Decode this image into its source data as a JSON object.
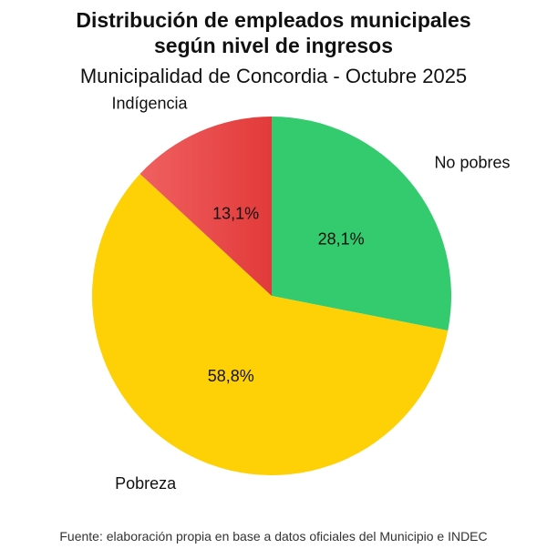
{
  "chart_data": {
    "type": "pie",
    "title_lines": [
      "Distribución de empleados municipales",
      "según nivel de ingresos"
    ],
    "subtitle": "Municipalidad de Concordia - Octubre 2025",
    "slices": [
      {
        "label": "No pobres",
        "value": 28.1,
        "display": "28,1%",
        "color": "#34cb6e"
      },
      {
        "label": "Pobreza",
        "value": 58.8,
        "display": "58,8%",
        "color": "#fed106"
      },
      {
        "label": "Indígencia",
        "value": 13.1,
        "display": "13,1%",
        "color": "#ea4848"
      }
    ],
    "start_angle_deg": 0,
    "direction": "clockwise",
    "source": "Fuente: elaboración propia en base a datos oficiales del Municipio e INDEC"
  }
}
